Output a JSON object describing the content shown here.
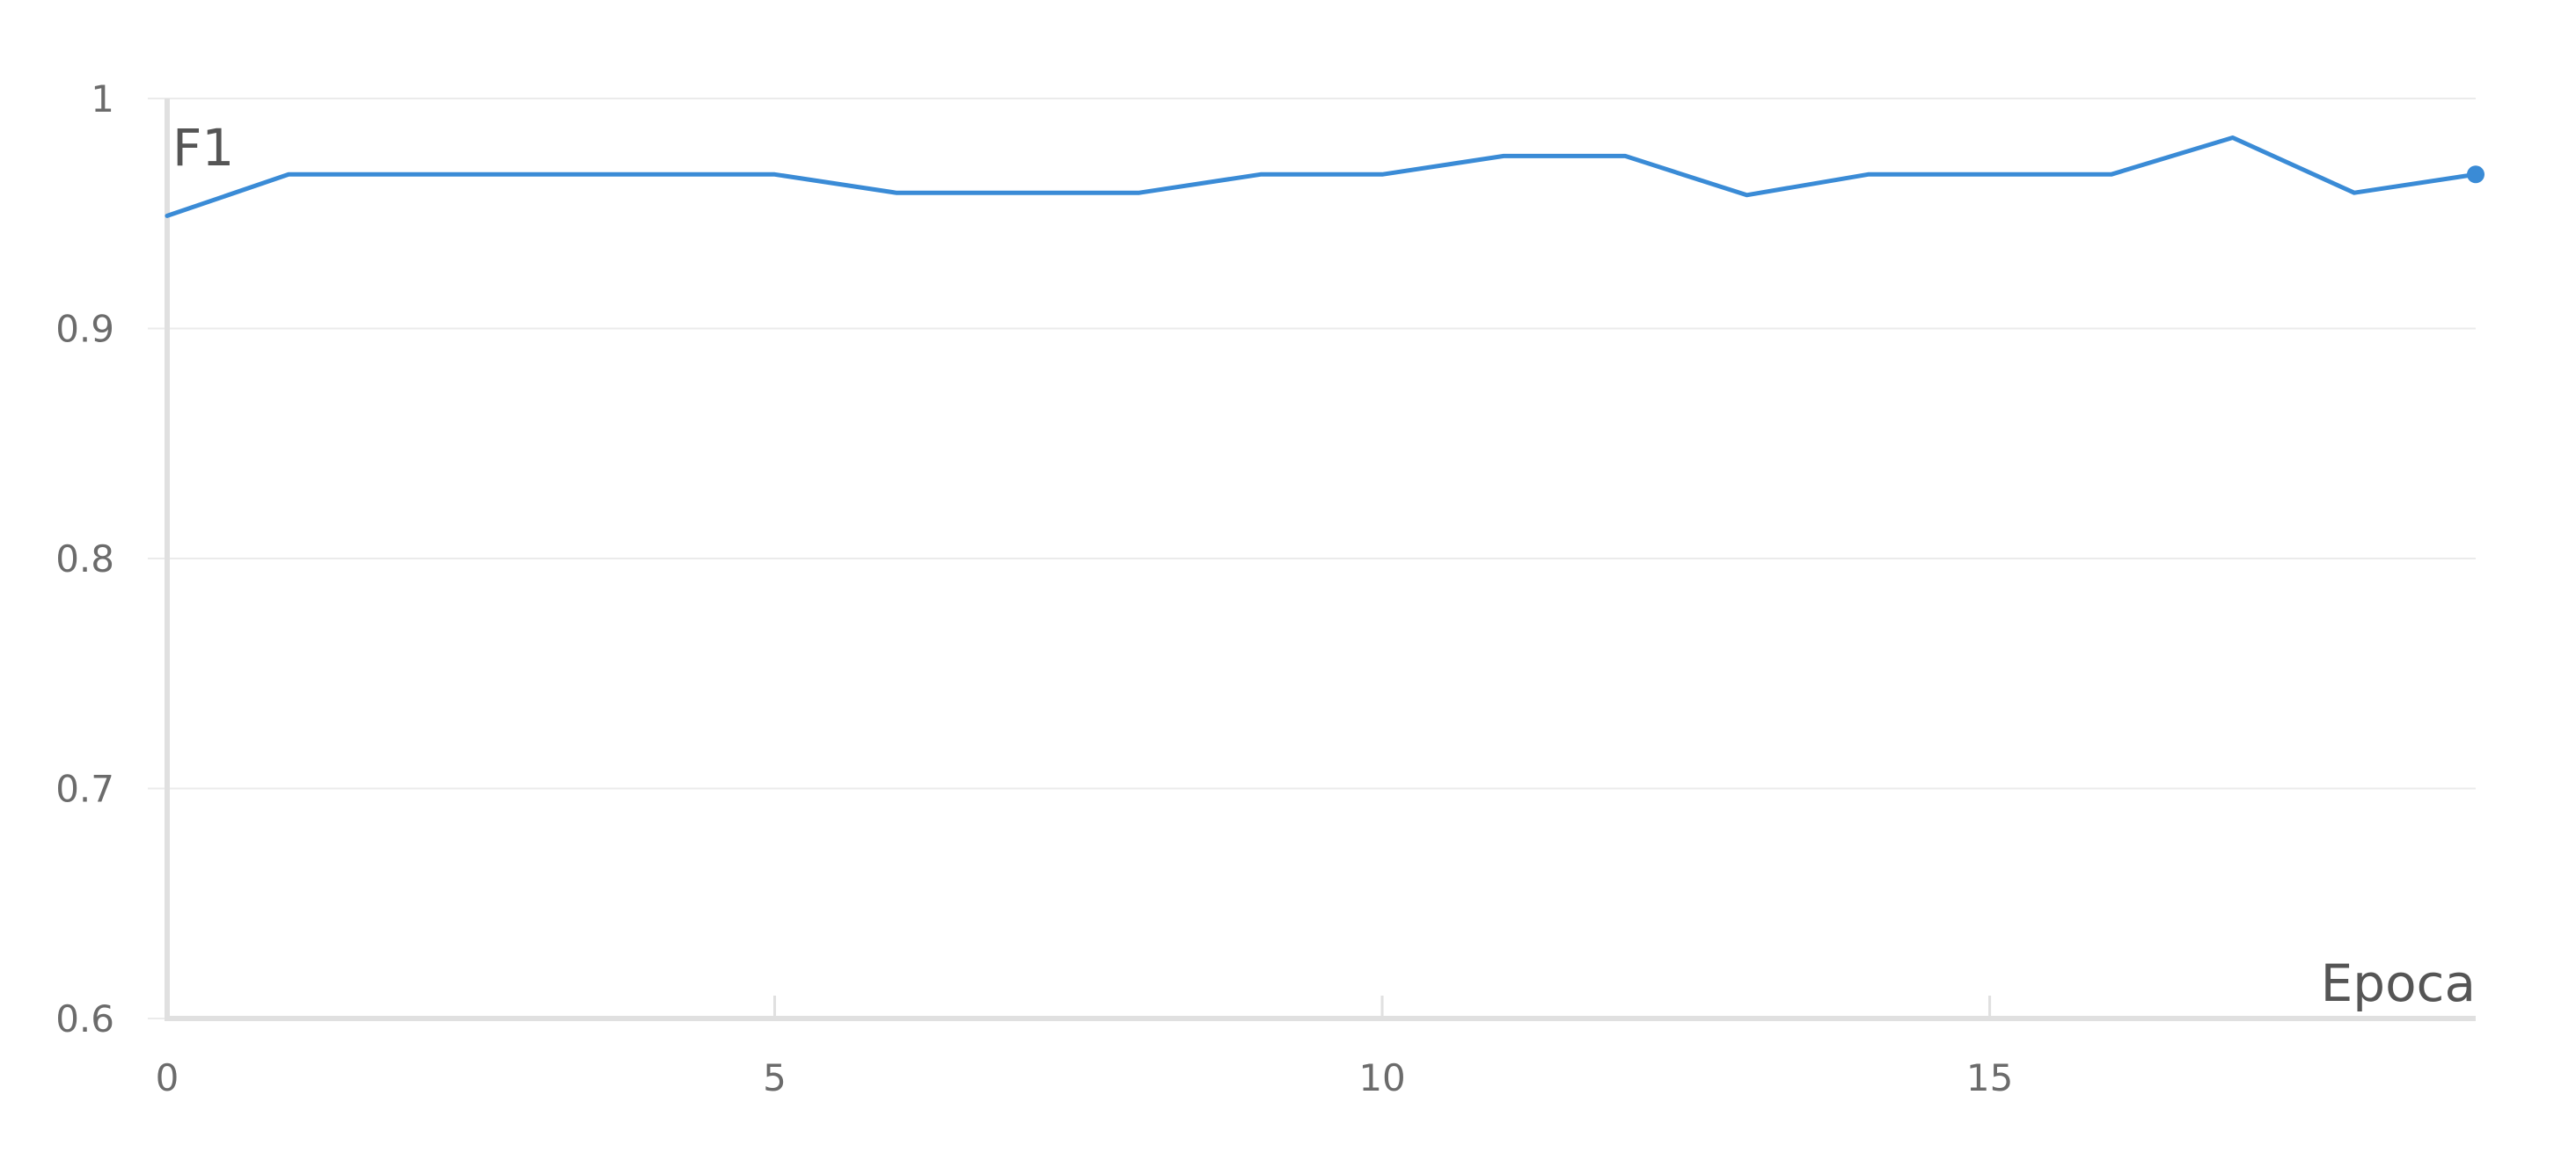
{
  "chart_data": {
    "type": "line",
    "title": "",
    "xlabel": "Epoca",
    "ylabel": "F1",
    "xlim": [
      0,
      19
    ],
    "ylim": [
      0.6,
      1
    ],
    "x_ticks": [
      0,
      5,
      10,
      15
    ],
    "x_tick_labels": [
      "0",
      "5",
      "10",
      "15"
    ],
    "y_ticks": [
      0.6,
      0.7,
      0.8,
      0.9,
      1
    ],
    "y_tick_labels": [
      "0.6",
      "0.7",
      "0.8",
      "0.9",
      "1"
    ],
    "grid": true,
    "legend": "none",
    "series": [
      {
        "color": "#3a8bd6",
        "x": [
          0,
          1,
          2,
          3,
          4,
          5,
          6,
          7,
          8,
          9,
          10,
          11,
          12,
          13,
          14,
          15,
          16,
          17,
          18,
          19
        ],
        "values": [
          0.949,
          0.967,
          0.967,
          0.967,
          0.967,
          0.967,
          0.959,
          0.959,
          0.959,
          0.967,
          0.967,
          0.975,
          0.975,
          0.958,
          0.967,
          0.967,
          0.967,
          0.983,
          0.959,
          0.967
        ]
      }
    ]
  }
}
